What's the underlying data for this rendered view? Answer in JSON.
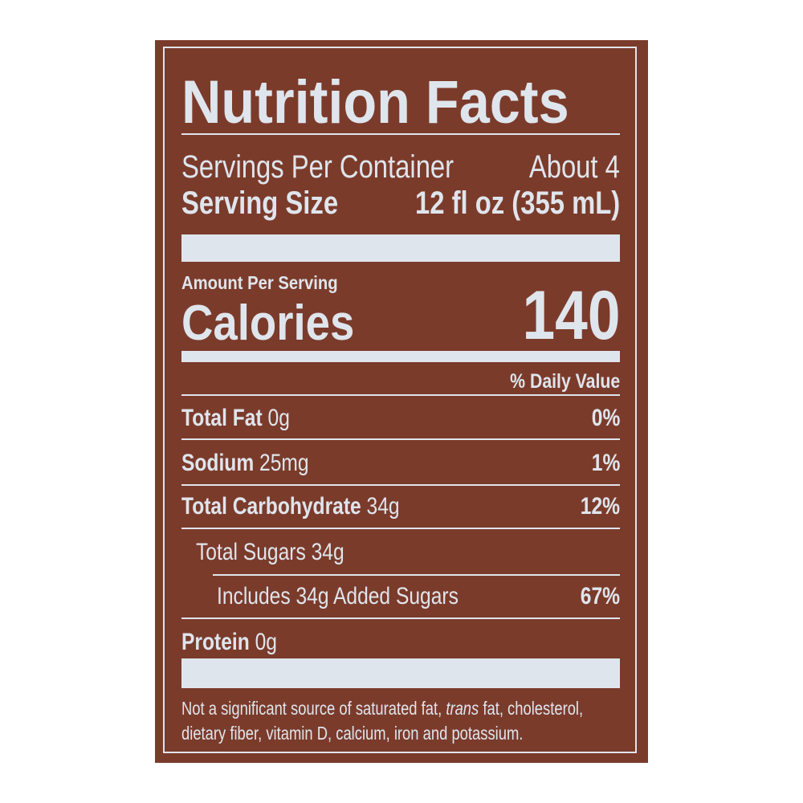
{
  "title": "Nutrition Facts",
  "servings_per_container": {
    "label": "Servings Per Container",
    "value": "About 4"
  },
  "serving_size": {
    "label": "Serving Size",
    "value": "12 fl oz (355 mL)"
  },
  "amount_per_serving": "Amount Per Serving",
  "calories": {
    "label": "Calories",
    "value": "140"
  },
  "daily_value_header": "% Daily Value",
  "nutrients": [
    {
      "name": "Total Fat",
      "amount": "0g",
      "dv": "0%"
    },
    {
      "name": "Sodium",
      "amount": "25mg",
      "dv": "1%"
    },
    {
      "name": "Total Carbohydrate",
      "amount": "34g",
      "dv": "12%"
    },
    {
      "name": "Total Sugars 34g",
      "amount": "",
      "dv": ""
    },
    {
      "name": "Includes 34g Added Sugars",
      "amount": "",
      "dv": "67%"
    },
    {
      "name": "Protein",
      "amount": "0g",
      "dv": ""
    }
  ],
  "footnote": {
    "part1": "Not a significant source of saturated fat, ",
    "italic": "trans",
    "part2": " fat, cholesterol, dietary fiber, vitamin D, calcium, iron and potassium."
  },
  "colors": {
    "background": "#7b3b2b",
    "text": "#dfe5ec"
  }
}
